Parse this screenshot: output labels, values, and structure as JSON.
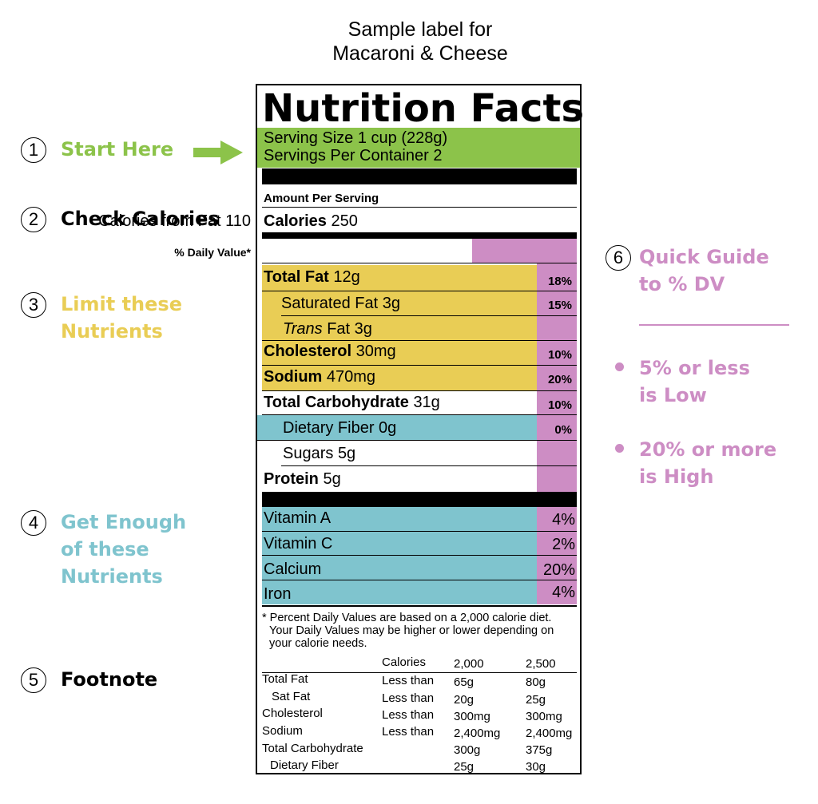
{
  "caption": {
    "line1": "Sample label for",
    "line2": "Macaroni & Cheese"
  },
  "colors": {
    "green": "#8cc34a",
    "yellow": "#e9cd55",
    "blue": "#7fc4ce",
    "pink": "#cd8dc4"
  },
  "label": {
    "title": "Nutrition Facts",
    "serving_size": "Serving Size 1 cup (228g)",
    "servings_per_container": "Servings Per Container 2",
    "amount_per_serving": "Amount Per Serving",
    "calories_label": "Calories",
    "calories_value": "250",
    "calories_from_fat": "Calories from Fat 110",
    "daily_value_header": "% Daily Value*",
    "nutrients": [
      {
        "name": "Total Fat",
        "amount": "12g",
        "dv": "18%"
      },
      {
        "name": "Saturated Fat",
        "amount": "3g",
        "dv": "15%"
      },
      {
        "name_italic": "Trans",
        "name": "Fat",
        "amount": "3g",
        "dv": ""
      },
      {
        "name": "Cholesterol",
        "amount": "30mg",
        "dv": "10%"
      },
      {
        "name": "Sodium",
        "amount": "470mg",
        "dv": "20%"
      },
      {
        "name": "Total Carbohydrate",
        "amount": "31g",
        "dv": "10%"
      },
      {
        "name": "Dietary Fiber",
        "amount": "0g",
        "dv": "0%"
      },
      {
        "name": "Sugars",
        "amount": "5g",
        "dv": ""
      },
      {
        "name": "Protein",
        "amount": "5g",
        "dv": ""
      }
    ],
    "vitamins": [
      {
        "name": "Vitamin A",
        "dv": "4%"
      },
      {
        "name": "Vitamin C",
        "dv": "2%"
      },
      {
        "name": "Calcium",
        "dv": "20%"
      },
      {
        "name": "Iron",
        "dv": "4%"
      }
    ],
    "footnote": {
      "line1": "* Percent Daily Values are based on a 2,000 calorie diet.",
      "line2": "Your Daily Values may be higher or lower depending on",
      "line3": "your calorie needs."
    },
    "footnote_table": {
      "header": [
        "Calories",
        "2,000",
        "2,500"
      ],
      "rows": [
        [
          "Total Fat",
          "Less than",
          "65g",
          "80g"
        ],
        [
          "Sat Fat",
          "Less than",
          "20g",
          "25g"
        ],
        [
          "Cholesterol",
          "Less than",
          "300mg",
          "300mg"
        ],
        [
          "Sodium",
          "Less than",
          "2,400mg",
          "2,400mg"
        ],
        [
          "Total Carbohydrate",
          "",
          "300g",
          "375g"
        ],
        [
          "Dietary Fiber",
          "",
          "25g",
          "30g"
        ]
      ]
    }
  },
  "annotations": {
    "a1": {
      "num": "1",
      "text": "Start Here"
    },
    "a2": {
      "num": "2",
      "text": "Check Calories"
    },
    "a3": {
      "num": "3",
      "line1": "Limit these",
      "line2": "Nutrients"
    },
    "a4": {
      "num": "4",
      "line1": "Get Enough",
      "line2": "of these",
      "line3": "Nutrients"
    },
    "a5": {
      "num": "5",
      "text": "Footnote"
    },
    "a6": {
      "num": "6",
      "line1": "Quick Guide",
      "line2": "to % DV"
    },
    "guide_low": {
      "line1": "5% or less",
      "line2": "is Low"
    },
    "guide_high": {
      "line1": "20% or more",
      "line2": "is High"
    }
  }
}
